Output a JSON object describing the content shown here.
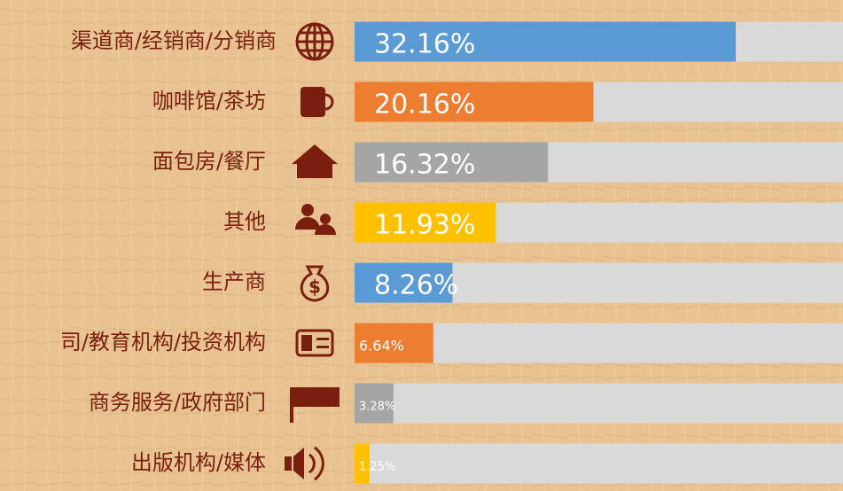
{
  "chart_data": {
    "type": "bar",
    "orientation": "horizontal",
    "categories": [
      "渠道商/经销商/分销商",
      "咖啡馆/茶坊",
      "面包房/餐厅",
      "其他",
      "生产商",
      "司/教育机构/投资机构",
      "商务服务/政府部门",
      "出版机构/媒体"
    ],
    "values": [
      32.16,
      20.16,
      16.32,
      11.93,
      8.26,
      6.64,
      3.28,
      1.25
    ],
    "value_labels": [
      "32.16%",
      "20.16%",
      "16.32%",
      "11.93%",
      "8.26%",
      "6.64%",
      "3.28%",
      "1.25%"
    ],
    "colors": [
      "#5b9bd5",
      "#ed7d31",
      "#a5a5a5",
      "#ffc000",
      "#5b9bd5",
      "#ed7d31",
      "#a5a5a5",
      "#ffc000"
    ],
    "track_color": "#d9d9d9"
  }
}
